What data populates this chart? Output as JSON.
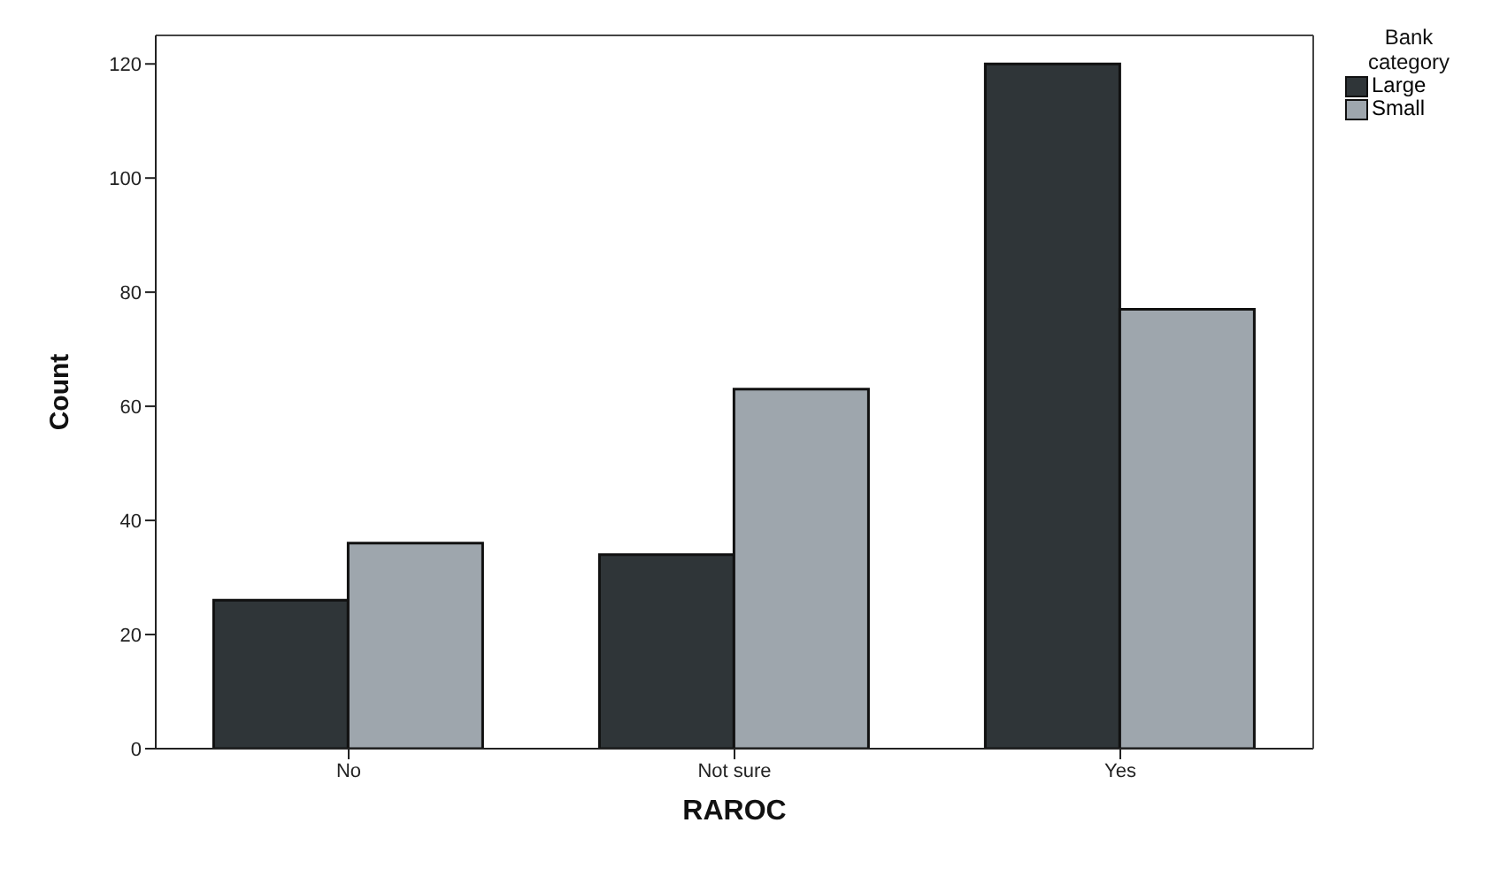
{
  "chart_data": {
    "type": "bar",
    "xlabel": "RAROC",
    "ylabel": "Count",
    "legend_title": "Bank category",
    "categories": [
      "No",
      "Not sure",
      "Yes"
    ],
    "series": [
      {
        "name": "Large",
        "color": "#2f3538",
        "values": [
          26,
          34,
          120
        ]
      },
      {
        "name": "Small",
        "color": "#9ea6ad",
        "values": [
          36,
          63,
          77
        ]
      }
    ],
    "ylim": [
      0,
      125
    ],
    "yticks": [
      0,
      20,
      40,
      60,
      80,
      100,
      120
    ],
    "grid": false,
    "legend": "top right"
  }
}
